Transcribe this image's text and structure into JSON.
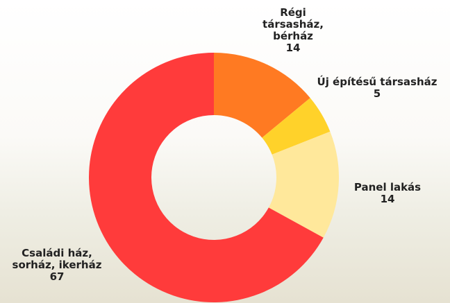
{
  "chart_data": {
    "type": "donut",
    "categories": [
      "Régi társasház, bérház",
      "Új építésű társasház",
      "Panel lakás",
      "Családi ház, sorház, ikerház"
    ],
    "values": [
      14,
      5,
      14,
      67
    ],
    "colors": [
      "#ff7a22",
      "#ffd22a",
      "#ffe89b",
      "#ff3b3b"
    ]
  }
}
